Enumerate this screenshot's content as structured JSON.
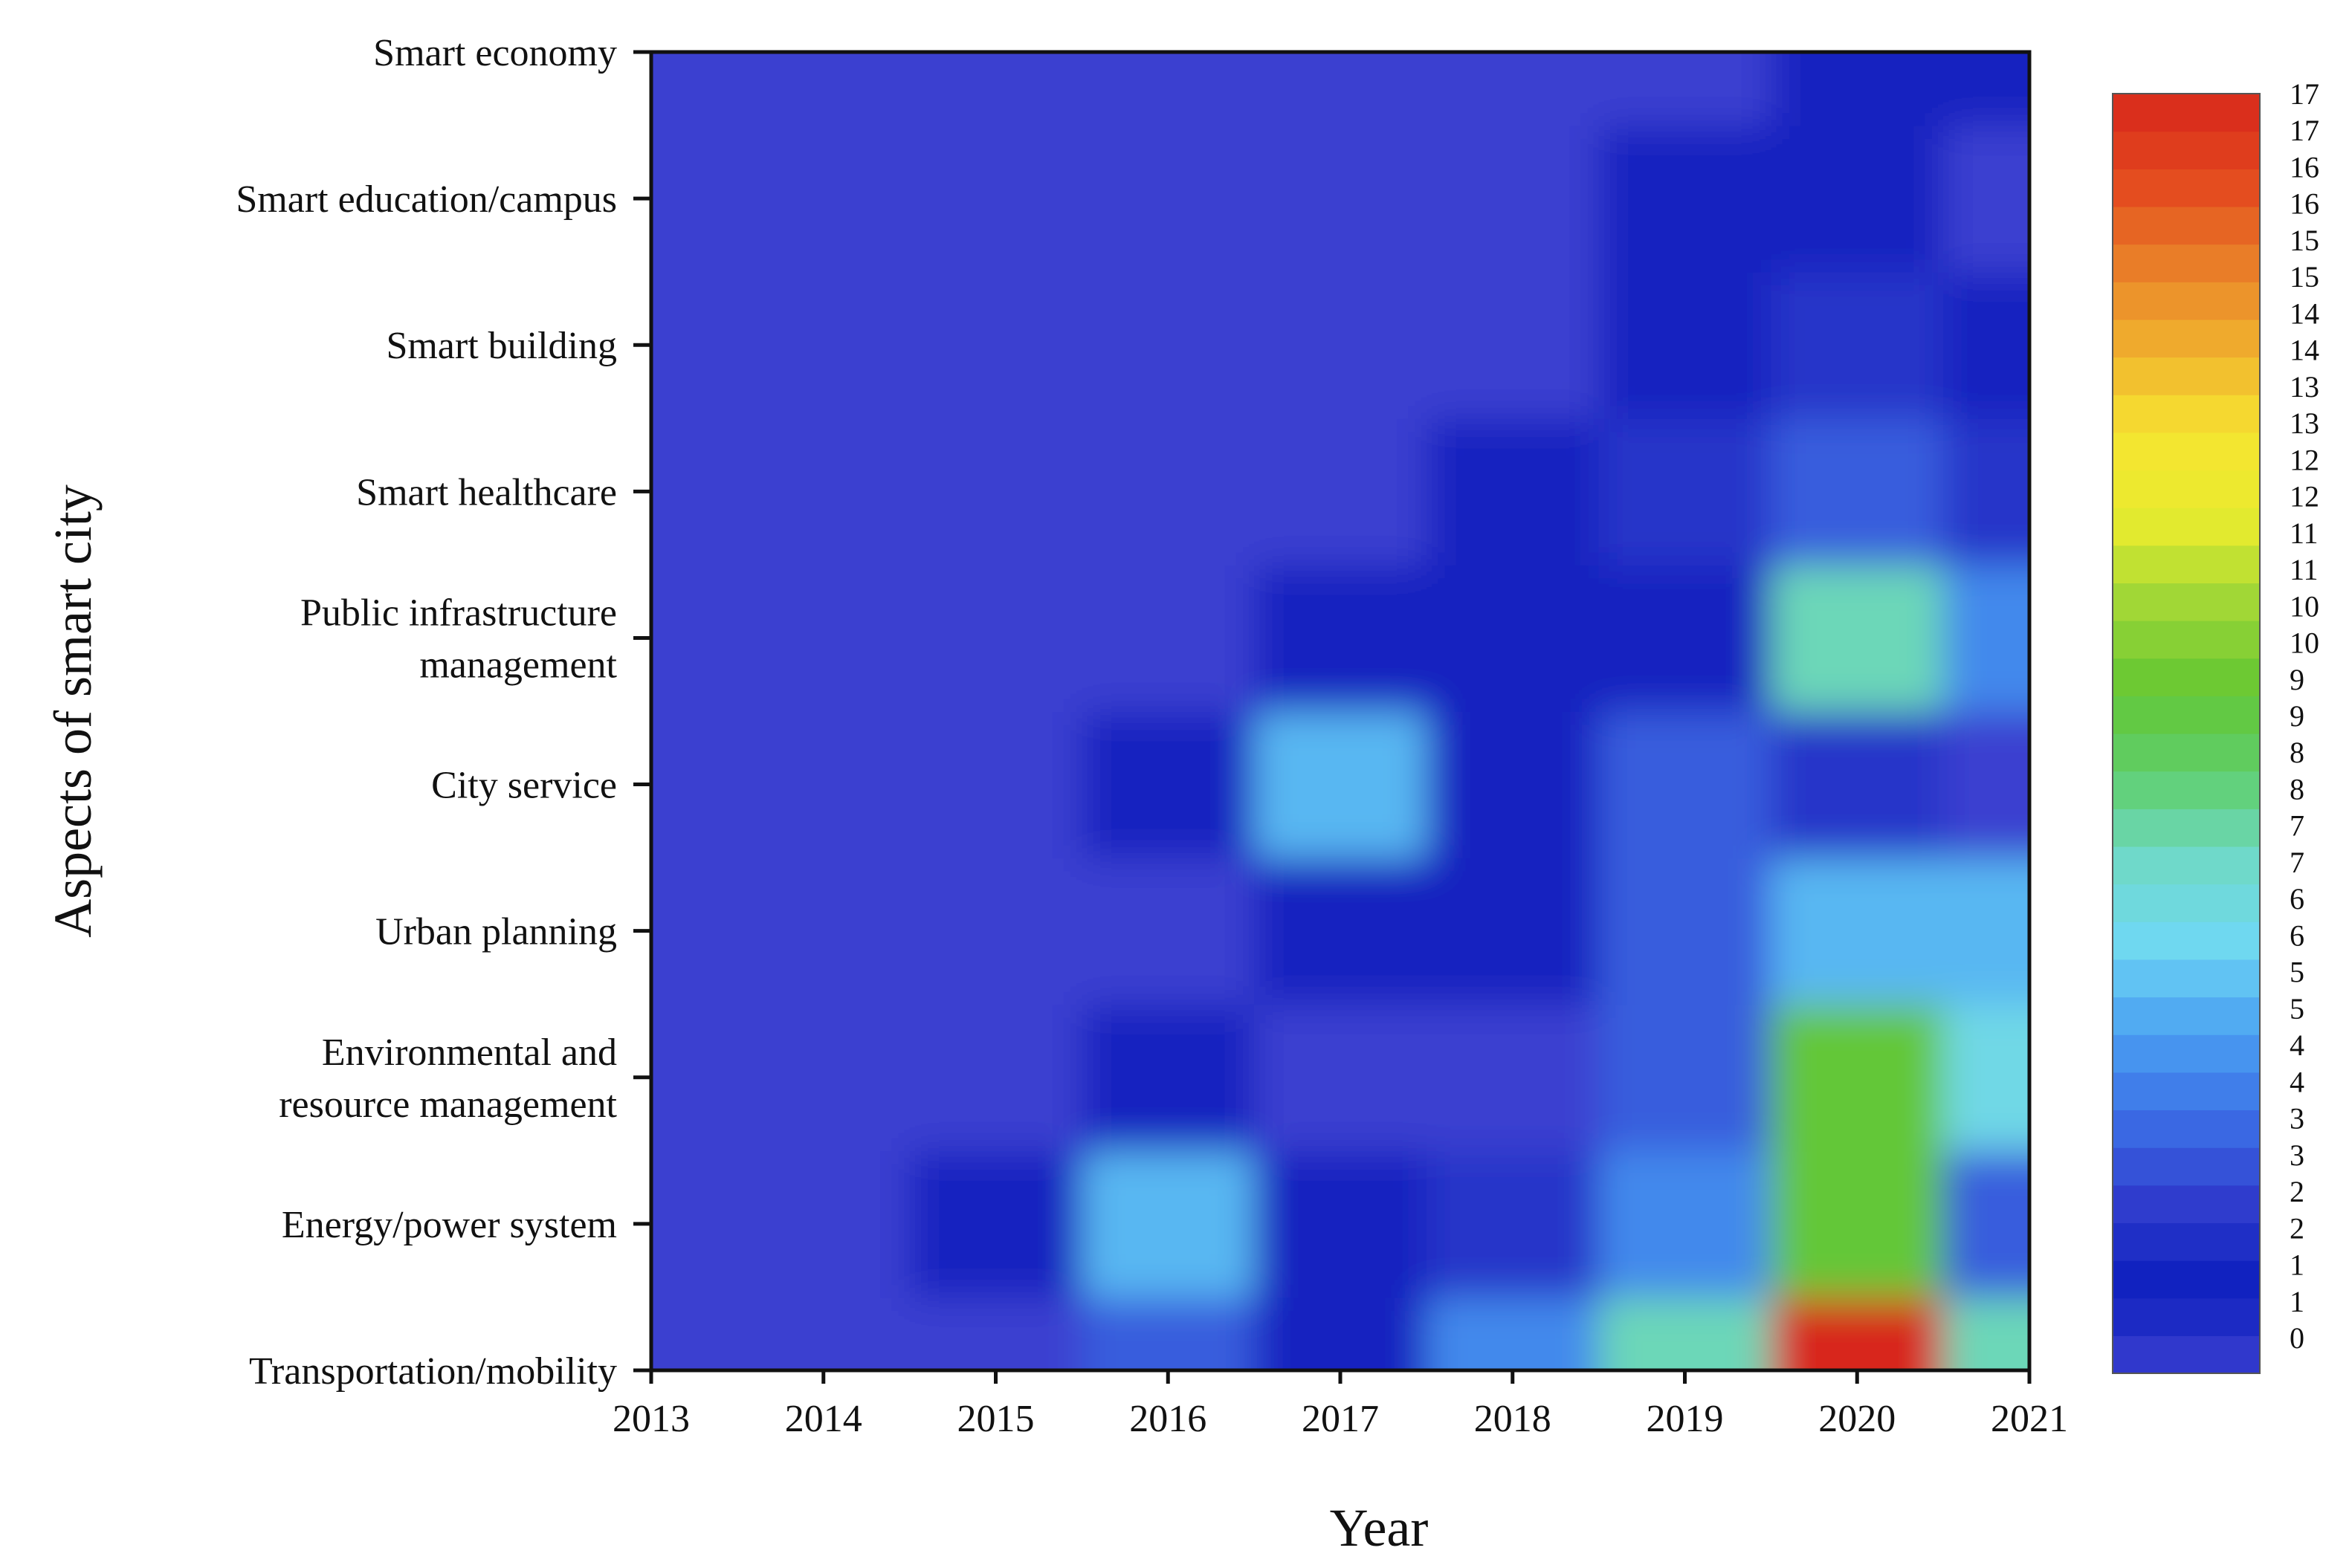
{
  "chart_data": {
    "type": "heatmap",
    "xlabel": "Year",
    "ylabel": "Aspects of smart city",
    "x": [
      "2013",
      "2014",
      "2015",
      "2016",
      "2017",
      "2018",
      "2019",
      "2020",
      "2021"
    ],
    "y": [
      "Transportation/mobility",
      "Energy/power system",
      "Environmental and resource management",
      "Urban planning",
      "City service",
      "Public infrastructure management",
      "Smart healthcare",
      "Smart building",
      "Smart education/campus",
      "Smart economy"
    ],
    "y_display": [
      [
        "Transportation/mobility"
      ],
      [
        "Energy/power system"
      ],
      [
        "Environmental and",
        "resource management"
      ],
      [
        "Urban planning"
      ],
      [
        "City service"
      ],
      [
        "Public infrastructure",
        "management"
      ],
      [
        "Smart healthcare"
      ],
      [
        "Smart building"
      ],
      [
        "Smart education/campus"
      ],
      [
        "Smart economy"
      ]
    ],
    "z": [
      [
        0,
        0,
        0,
        3,
        1,
        4,
        7,
        17,
        7
      ],
      [
        0,
        0,
        1,
        5,
        1,
        2,
        4,
        9,
        3
      ],
      [
        0,
        0,
        0,
        1,
        0,
        0,
        3,
        9,
        6
      ],
      [
        0,
        0,
        0,
        0,
        1,
        1,
        3,
        5,
        5
      ],
      [
        0,
        0,
        0,
        1,
        5,
        1,
        3,
        2,
        0
      ],
      [
        0,
        0,
        0,
        0,
        1,
        1,
        1,
        7,
        4
      ],
      [
        0,
        0,
        0,
        0,
        0,
        1,
        2,
        3,
        2
      ],
      [
        0,
        0,
        0,
        0,
        0,
        0,
        1,
        2,
        1
      ],
      [
        0,
        0,
        0,
        0,
        0,
        0,
        1,
        1,
        0
      ],
      [
        0,
        0,
        0,
        0,
        0,
        0,
        0,
        1,
        1
      ]
    ],
    "zlim": [
      0,
      17
    ],
    "levels": 34,
    "colorbar": {
      "ticks": [
        "17",
        "17",
        "16",
        "16",
        "15",
        "15",
        "14",
        "14",
        "13",
        "13",
        "12",
        "12",
        "11",
        "11",
        "10",
        "10",
        "9",
        "9",
        "8",
        "8",
        "7",
        "7",
        "6",
        "6",
        "5",
        "5",
        "4",
        "4",
        "3",
        "3",
        "2",
        "2",
        "1",
        "1",
        "0"
      ]
    },
    "colorscale": [
      "#3a3fd0",
      "#0d1fbe",
      "#2f3ccd",
      "#3c6fe6",
      "#4aa0f2",
      "#6fd8f3",
      "#6fd9c8",
      "#5fcf6f",
      "#63c633",
      "#9ed636",
      "#e7ec2e",
      "#f6e530",
      "#f0b12e",
      "#e97e28",
      "#e3471e",
      "#d8281c"
    ],
    "legend": "right",
    "grid": false
  }
}
